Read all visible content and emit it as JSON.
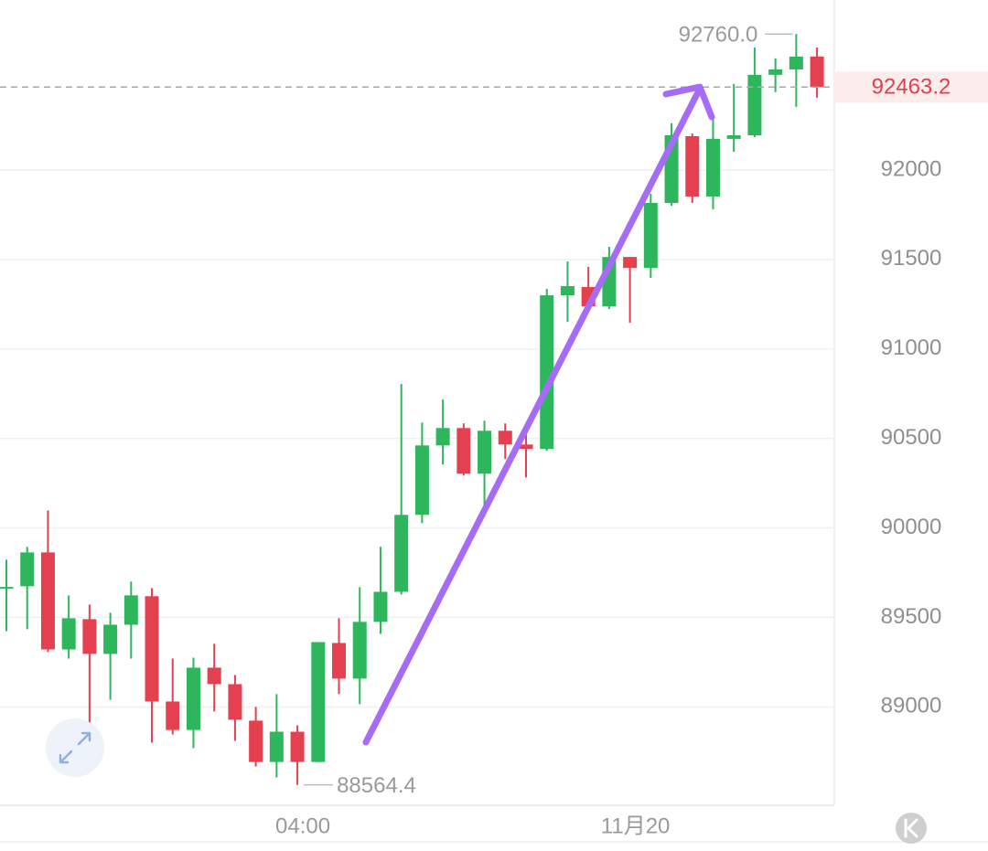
{
  "chart_data": {
    "type": "candlestick",
    "categories": [
      null,
      null,
      null,
      null,
      null,
      null,
      null,
      null,
      null,
      null,
      null,
      null,
      null,
      null,
      "04:00",
      null,
      null,
      null,
      null,
      null,
      null,
      null,
      null,
      null,
      null,
      null,
      null,
      null,
      null,
      null,
      "11月20",
      null,
      null,
      null,
      null,
      null,
      null,
      null,
      null,
      null
    ],
    "open": [
      89660,
      89674,
      89863,
      89321,
      89490,
      89296,
      89459,
      89618,
      89030,
      88871,
      89219,
      89127,
      88923,
      88692,
      88861,
      88692,
      89357,
      89158,
      89475,
      89643,
      90073,
      90461,
      90558,
      90303,
      90543,
      90466,
      90441,
      91300,
      91346,
      91238,
      91514,
      91453,
      91816,
      92189,
      91852,
      92174,
      92194,
      92532,
      92562,
      92634
    ],
    "high": [
      89822,
      89894,
      90098,
      89623,
      89572,
      89526,
      89700,
      89664,
      89270,
      89275,
      89352,
      89178,
      89000,
      89071,
      88897,
      89362,
      89495,
      89669,
      89894,
      90804,
      90589,
      90717,
      90584,
      90599,
      90584,
      90523,
      91335,
      91489,
      91458,
      91571,
      91514,
      91867,
      92261,
      92204,
      92312,
      92481,
      92685,
      92624,
      92760,
      92685
    ],
    "low": [
      89423,
      89434,
      89306,
      89270,
      88820,
      89040,
      89270,
      88800,
      88846,
      88769,
      88974,
      88810,
      88667,
      88606,
      88564.4,
      88692,
      89071,
      89015,
      89408,
      89628,
      90027,
      90354,
      90293,
      90063,
      90385,
      90282,
      90431,
      91151,
      91223,
      91223,
      91146,
      91397,
      91800,
      91816,
      91780,
      92102,
      92184,
      92435,
      92353,
      92404
    ],
    "close": [
      89670,
      89863,
      89321,
      89495,
      89296,
      89459,
      89623,
      89030,
      88871,
      89219,
      89127,
      88928,
      88692,
      88861,
      88692,
      89362,
      89158,
      89475,
      89643,
      90073,
      90461,
      90558,
      90303,
      90543,
      90466,
      90441,
      91300,
      91351,
      91238,
      91514,
      91453,
      91816,
      92194,
      91852,
      92174,
      92194,
      92532,
      92562,
      92634,
      92463.2
    ],
    "up_color": "#2eb65c",
    "down_color": "#e5404f",
    "ylim": [
      88450,
      92950
    ],
    "yticks": [
      89000,
      89500,
      90000,
      90500,
      91000,
      91500,
      92000
    ],
    "grid": true,
    "last_price": 92463.2,
    "high_marker": {
      "value": 92760,
      "label": "92760.0"
    },
    "low_marker": 88564.4
  }
}
